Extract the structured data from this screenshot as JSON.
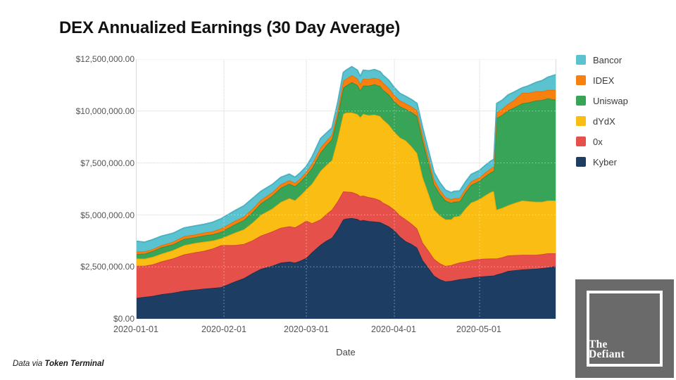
{
  "title": "DEX Annualized Earnings (30 Day Average)",
  "footer": {
    "prefix": "Data via ",
    "source": "Token Terminal"
  },
  "logo": {
    "line1": "The",
    "line2": "Defiant"
  },
  "chart_data": {
    "type": "area",
    "stacked": true,
    "title": "DEX Annualized Earnings (30 Day Average)",
    "xlabel": "Date",
    "ylabel": "",
    "ylim": [
      0,
      12500000
    ],
    "grid": true,
    "legend_position": "right",
    "values_unit": "USD millions (annualized earnings, 30 day average)",
    "x_ticks": [
      "2020-01-01",
      "2020-02-01",
      "2020-03-01",
      "2020-04-01",
      "2020-05-01"
    ],
    "y_ticks": [
      "$12,500,000.00",
      "$10,000,000.00",
      "$7,500,000.00",
      "$5,000,000.00",
      "$2,500,000.00",
      "$0.00"
    ],
    "x_range_days": [
      0,
      148
    ],
    "month_tick_days": [
      0,
      31,
      60,
      91,
      121
    ],
    "dates": [
      "2020-01-01",
      "2020-01-04",
      "2020-01-07",
      "2020-01-10",
      "2020-01-14",
      "2020-01-18",
      "2020-01-22",
      "2020-01-25",
      "2020-01-28",
      "2020-01-31",
      "2020-02-05",
      "2020-02-08",
      "2020-02-11",
      "2020-02-14",
      "2020-02-18",
      "2020-02-21",
      "2020-02-24",
      "2020-02-26",
      "2020-02-28",
      "2020-03-01",
      "2020-03-03",
      "2020-03-06",
      "2020-03-08",
      "2020-03-10",
      "2020-03-12",
      "2020-03-14",
      "2020-03-15",
      "2020-03-17",
      "2020-03-19",
      "2020-03-20",
      "2020-03-21",
      "2020-03-23",
      "2020-03-25",
      "2020-03-27",
      "2020-03-28",
      "2020-03-30",
      "2020-04-01",
      "2020-04-03",
      "2020-04-05",
      "2020-04-07",
      "2020-04-09",
      "2020-04-11",
      "2020-04-13",
      "2020-04-15",
      "2020-04-17",
      "2020-04-19",
      "2020-04-21",
      "2020-04-22",
      "2020-04-24",
      "2020-04-26",
      "2020-04-28",
      "2020-04-29",
      "2020-05-01",
      "2020-05-03",
      "2020-05-05",
      "2020-05-06",
      "2020-05-07",
      "2020-05-09",
      "2020-05-11",
      "2020-05-13",
      "2020-05-16",
      "2020-05-18",
      "2020-05-21",
      "2020-05-23",
      "2020-05-25",
      "2020-05-28"
    ],
    "days": [
      0,
      3,
      6,
      9,
      13,
      17,
      21,
      24,
      27,
      30,
      35,
      38,
      41,
      44,
      48,
      51,
      54,
      56,
      58,
      60,
      62,
      65,
      67,
      69,
      71,
      73,
      74,
      76,
      78,
      79,
      80,
      82,
      84,
      86,
      87,
      89,
      91,
      93,
      95,
      97,
      99,
      101,
      103,
      105,
      107,
      109,
      111,
      112,
      114,
      116,
      118,
      119,
      121,
      123,
      125,
      126,
      127,
      129,
      131,
      133,
      136,
      138,
      141,
      143,
      145,
      148
    ],
    "series": [
      {
        "name": "Kyber",
        "color": "#1D3E62",
        "edge": "#16314E",
        "values": [
          1.0,
          1.05,
          1.1,
          1.18,
          1.25,
          1.35,
          1.4,
          1.45,
          1.48,
          1.52,
          1.8,
          1.95,
          2.19,
          2.4,
          2.55,
          2.7,
          2.75,
          2.7,
          2.8,
          2.93,
          3.2,
          3.56,
          3.75,
          3.9,
          4.3,
          4.78,
          4.82,
          4.85,
          4.8,
          4.72,
          4.75,
          4.7,
          4.68,
          4.65,
          4.58,
          4.45,
          4.25,
          3.95,
          3.73,
          3.6,
          3.42,
          2.81,
          2.45,
          2.07,
          1.9,
          1.8,
          1.82,
          1.85,
          1.9,
          1.93,
          1.97,
          2.0,
          2.03,
          2.05,
          2.07,
          2.08,
          2.13,
          2.2,
          2.3,
          2.33,
          2.37,
          2.39,
          2.41,
          2.44,
          2.47,
          2.54
        ]
      },
      {
        "name": "0x",
        "color": "#E6504A",
        "edge": "#D13E39",
        "values": [
          1.55,
          1.5,
          1.52,
          1.58,
          1.65,
          1.75,
          1.8,
          1.82,
          1.9,
          2.02,
          1.75,
          1.65,
          1.58,
          1.6,
          1.65,
          1.68,
          1.7,
          1.7,
          1.75,
          1.79,
          1.4,
          1.22,
          1.28,
          1.35,
          1.35,
          1.35,
          1.3,
          1.25,
          1.2,
          1.18,
          1.18,
          1.15,
          1.12,
          1.05,
          1.01,
          1.0,
          1.0,
          1.02,
          1.05,
          0.98,
          0.92,
          0.85,
          0.83,
          0.81,
          0.77,
          0.74,
          0.76,
          0.78,
          0.81,
          0.82,
          0.84,
          0.84,
          0.85,
          0.84,
          0.83,
          0.82,
          0.77,
          0.76,
          0.75,
          0.73,
          0.71,
          0.69,
          0.67,
          0.67,
          0.68,
          0.61
        ]
      },
      {
        "name": "dYdX",
        "color": "#F9BD13",
        "edge": "#E9A906",
        "values": [
          0.35,
          0.34,
          0.36,
          0.37,
          0.4,
          0.44,
          0.45,
          0.44,
          0.38,
          0.33,
          0.6,
          0.7,
          0.85,
          1.0,
          1.1,
          1.24,
          1.35,
          1.3,
          1.4,
          1.51,
          1.9,
          2.34,
          2.36,
          2.38,
          3.0,
          3.73,
          3.8,
          3.83,
          3.85,
          3.8,
          3.93,
          3.95,
          4.03,
          4.05,
          4.0,
          3.9,
          3.75,
          3.75,
          3.8,
          3.72,
          3.63,
          3.15,
          2.75,
          2.37,
          2.3,
          2.24,
          2.2,
          2.28,
          2.24,
          2.55,
          2.78,
          2.8,
          2.88,
          3.05,
          3.2,
          3.25,
          2.35,
          2.38,
          2.41,
          2.5,
          2.61,
          2.58,
          2.55,
          2.52,
          2.54,
          2.54
        ]
      },
      {
        "name": "Uniswap",
        "color": "#38A457",
        "edge": "#2C8A48",
        "values": [
          0.22,
          0.24,
          0.28,
          0.31,
          0.28,
          0.3,
          0.28,
          0.3,
          0.3,
          0.31,
          0.4,
          0.45,
          0.5,
          0.55,
          0.62,
          0.68,
          0.7,
          0.68,
          0.66,
          0.68,
          0.75,
          0.88,
          0.95,
          1.01,
          1.1,
          1.26,
          1.3,
          1.46,
          1.4,
          1.3,
          1.36,
          1.42,
          1.46,
          1.45,
          1.43,
          1.45,
          1.46,
          1.5,
          1.52,
          1.65,
          1.79,
          1.77,
          1.5,
          1.22,
          1.05,
          0.91,
          0.8,
          0.72,
          0.7,
          0.78,
          0.85,
          0.87,
          0.88,
          0.92,
          0.95,
          0.97,
          4.41,
          4.48,
          4.57,
          4.6,
          4.68,
          4.75,
          4.88,
          4.9,
          4.92,
          4.85
        ]
      },
      {
        "name": "IDEX",
        "color": "#F8800E",
        "edge": "#E06D02",
        "values": [
          0.12,
          0.11,
          0.1,
          0.1,
          0.12,
          0.14,
          0.13,
          0.14,
          0.15,
          0.17,
          0.17,
          0.17,
          0.17,
          0.17,
          0.17,
          0.17,
          0.17,
          0.16,
          0.16,
          0.16,
          0.2,
          0.24,
          0.22,
          0.21,
          0.27,
          0.34,
          0.33,
          0.34,
          0.32,
          0.3,
          0.34,
          0.32,
          0.31,
          0.32,
          0.34,
          0.32,
          0.3,
          0.28,
          0.27,
          0.27,
          0.27,
          0.27,
          0.25,
          0.24,
          0.2,
          0.17,
          0.17,
          0.17,
          0.17,
          0.17,
          0.17,
          0.17,
          0.17,
          0.18,
          0.2,
          0.2,
          0.27,
          0.29,
          0.31,
          0.35,
          0.51,
          0.47,
          0.44,
          0.42,
          0.41,
          0.48
        ]
      },
      {
        "name": "Bancor",
        "color": "#5BC2CF",
        "edge": "#43ADBC",
        "values": [
          0.5,
          0.45,
          0.46,
          0.44,
          0.42,
          0.4,
          0.42,
          0.4,
          0.44,
          0.47,
          0.5,
          0.52,
          0.5,
          0.42,
          0.38,
          0.34,
          0.3,
          0.28,
          0.28,
          0.27,
          0.35,
          0.44,
          0.38,
          0.34,
          0.38,
          0.4,
          0.42,
          0.41,
          0.4,
          0.38,
          0.41,
          0.4,
          0.4,
          0.38,
          0.37,
          0.37,
          0.37,
          0.35,
          0.34,
          0.34,
          0.34,
          0.34,
          0.34,
          0.34,
          0.34,
          0.34,
          0.33,
          0.34,
          0.34,
          0.34,
          0.34,
          0.34,
          0.34,
          0.35,
          0.35,
          0.36,
          0.44,
          0.42,
          0.44,
          0.4,
          0.24,
          0.33,
          0.44,
          0.52,
          0.61,
          0.74
        ]
      }
    ],
    "legend": [
      {
        "label": "Bancor",
        "color": "#5BC2CF"
      },
      {
        "label": "IDEX",
        "color": "#F8800E"
      },
      {
        "label": "Uniswap",
        "color": "#38A457"
      },
      {
        "label": "dYdX",
        "color": "#F9BD13"
      },
      {
        "label": "0x",
        "color": "#E6504A"
      },
      {
        "label": "Kyber",
        "color": "#1D3E62"
      }
    ]
  }
}
